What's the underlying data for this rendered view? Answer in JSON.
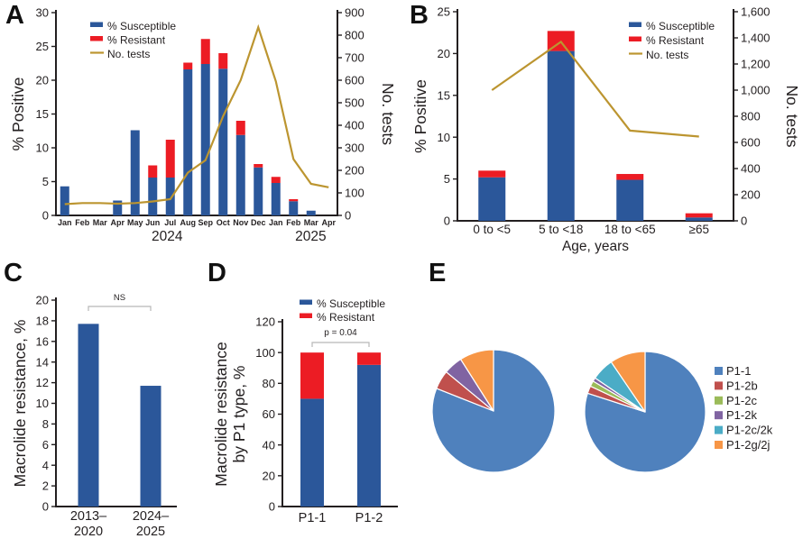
{
  "colors": {
    "text": "#231f20",
    "axis": "#231f20",
    "bar_blue": "#2b579a",
    "bar_red": "#ec1c24",
    "line_gold": "#bc9530",
    "bracket": "#b7b7b7",
    "pie": [
      "#4f81bd",
      "#c0504d",
      "#9bbb59",
      "#8064a2",
      "#4bacc6",
      "#f79646"
    ]
  },
  "chart_data": [
    {
      "panel": "A",
      "label": "A",
      "type": "bar-line",
      "legend": [
        "% Susceptible",
        "% Resistant",
        "No. tests"
      ],
      "y_left": {
        "title": "% Positive",
        "lim": [
          0,
          30
        ],
        "ticks": [
          "0",
          "5",
          "10",
          "15",
          "20",
          "25",
          "30"
        ]
      },
      "y_right": {
        "title": "No. tests",
        "lim": [
          0,
          900
        ],
        "ticks": [
          "0",
          "100",
          "200",
          "300",
          "400",
          "500",
          "600",
          "700",
          "800",
          "900"
        ]
      },
      "x": {
        "categories": [
          "Jan",
          "Feb",
          "Mar",
          "Apr",
          "May",
          "Jun",
          "Jul",
          "Aug",
          "Sep",
          "Oct",
          "Nov",
          "Dec",
          "Jan",
          "Feb",
          "Mar",
          "Apr"
        ],
        "year_labels": [
          "2024",
          "2025"
        ]
      },
      "series": [
        {
          "name": "% Susceptible",
          "type": "bar",
          "values": [
            4.3,
            0,
            0,
            2.2,
            12.6,
            5.6,
            5.6,
            21.6,
            22.4,
            21.7,
            11.9,
            7.1,
            4.8,
            2.1,
            0.7,
            0
          ]
        },
        {
          "name": "% Resistant",
          "type": "bar",
          "values": [
            0,
            0,
            0,
            0,
            0,
            1.8,
            5.6,
            1,
            3.7,
            2.3,
            2.1,
            0.5,
            0.9,
            0.3,
            0,
            0
          ]
        },
        {
          "name": "No. tests",
          "type": "line",
          "axis": "right",
          "values": [
            50,
            55,
            55,
            52,
            55,
            62,
            72,
            190,
            245,
            440,
            600,
            835,
            595,
            250,
            140,
            125
          ]
        }
      ]
    },
    {
      "panel": "B",
      "label": "B",
      "type": "bar-line",
      "legend": [
        "% Susceptible",
        "% Resistant",
        "No. tests"
      ],
      "y_left": {
        "title": "% Positive",
        "lim": [
          0,
          25
        ],
        "ticks": [
          "0",
          "5",
          "10",
          "15",
          "20",
          "25"
        ]
      },
      "y_right": {
        "title": "No. tests",
        "lim": [
          0,
          1600
        ],
        "ticks": [
          "0",
          "200",
          "400",
          "600",
          "800",
          "1,000",
          "1,200",
          "1,400",
          "1,600"
        ]
      },
      "x": {
        "title": "Age, years",
        "categories": [
          "0 to <5",
          "5 to <18",
          "18 to <65",
          "≥65"
        ]
      },
      "series": [
        {
          "name": "% Susceptible",
          "type": "bar",
          "values": [
            5.2,
            20.3,
            4.9,
            0.4
          ]
        },
        {
          "name": "% Resistant",
          "type": "bar",
          "values": [
            0.8,
            2.4,
            0.7,
            0.5
          ]
        },
        {
          "name": "No. tests",
          "type": "line",
          "axis": "right",
          "values": [
            1000,
            1370,
            690,
            645
          ]
        }
      ]
    },
    {
      "panel": "C",
      "label": "C",
      "type": "bar",
      "y": {
        "title": "Macrolide resistance, %",
        "lim": [
          0,
          20
        ],
        "ticks": [
          "0",
          "2",
          "4",
          "6",
          "8",
          "10",
          "12",
          "14",
          "16",
          "18",
          "20"
        ]
      },
      "categories": [
        [
          "2013–",
          "2020"
        ],
        [
          "2024–",
          "2025"
        ]
      ],
      "values": [
        17.7,
        11.7
      ],
      "annotation": "NS"
    },
    {
      "panel": "D",
      "label": "D",
      "type": "stacked-bar",
      "legend": [
        "% Susceptible",
        "% Resistant"
      ],
      "y": {
        "title_lines": [
          "Macrolide resistance",
          "by P1 type, %"
        ],
        "lim": [
          0,
          120
        ],
        "ticks": [
          "0",
          "20",
          "40",
          "60",
          "80",
          "100",
          "120"
        ]
      },
      "categories": [
        "P1-1",
        "P1-2"
      ],
      "series": [
        {
          "name": "% Susceptible",
          "values": [
            70,
            92
          ]
        },
        {
          "name": "% Resistant",
          "values": [
            30,
            8
          ]
        }
      ],
      "annotation": "p = 0.04"
    },
    {
      "panel": "E",
      "label": "E",
      "type": "pie",
      "legend": [
        "P1-1",
        "P1-2b",
        "P1-2c",
        "P1-2k",
        "P1-2c/2k",
        "P1-2g/2j"
      ],
      "pies": [
        {
          "name": "pie-left",
          "values": [
            81,
            5,
            0,
            5,
            0,
            9
          ]
        },
        {
          "name": "pie-right",
          "values": [
            80,
            2,
            1.5,
            1,
            6,
            9.5
          ]
        }
      ]
    }
  ]
}
